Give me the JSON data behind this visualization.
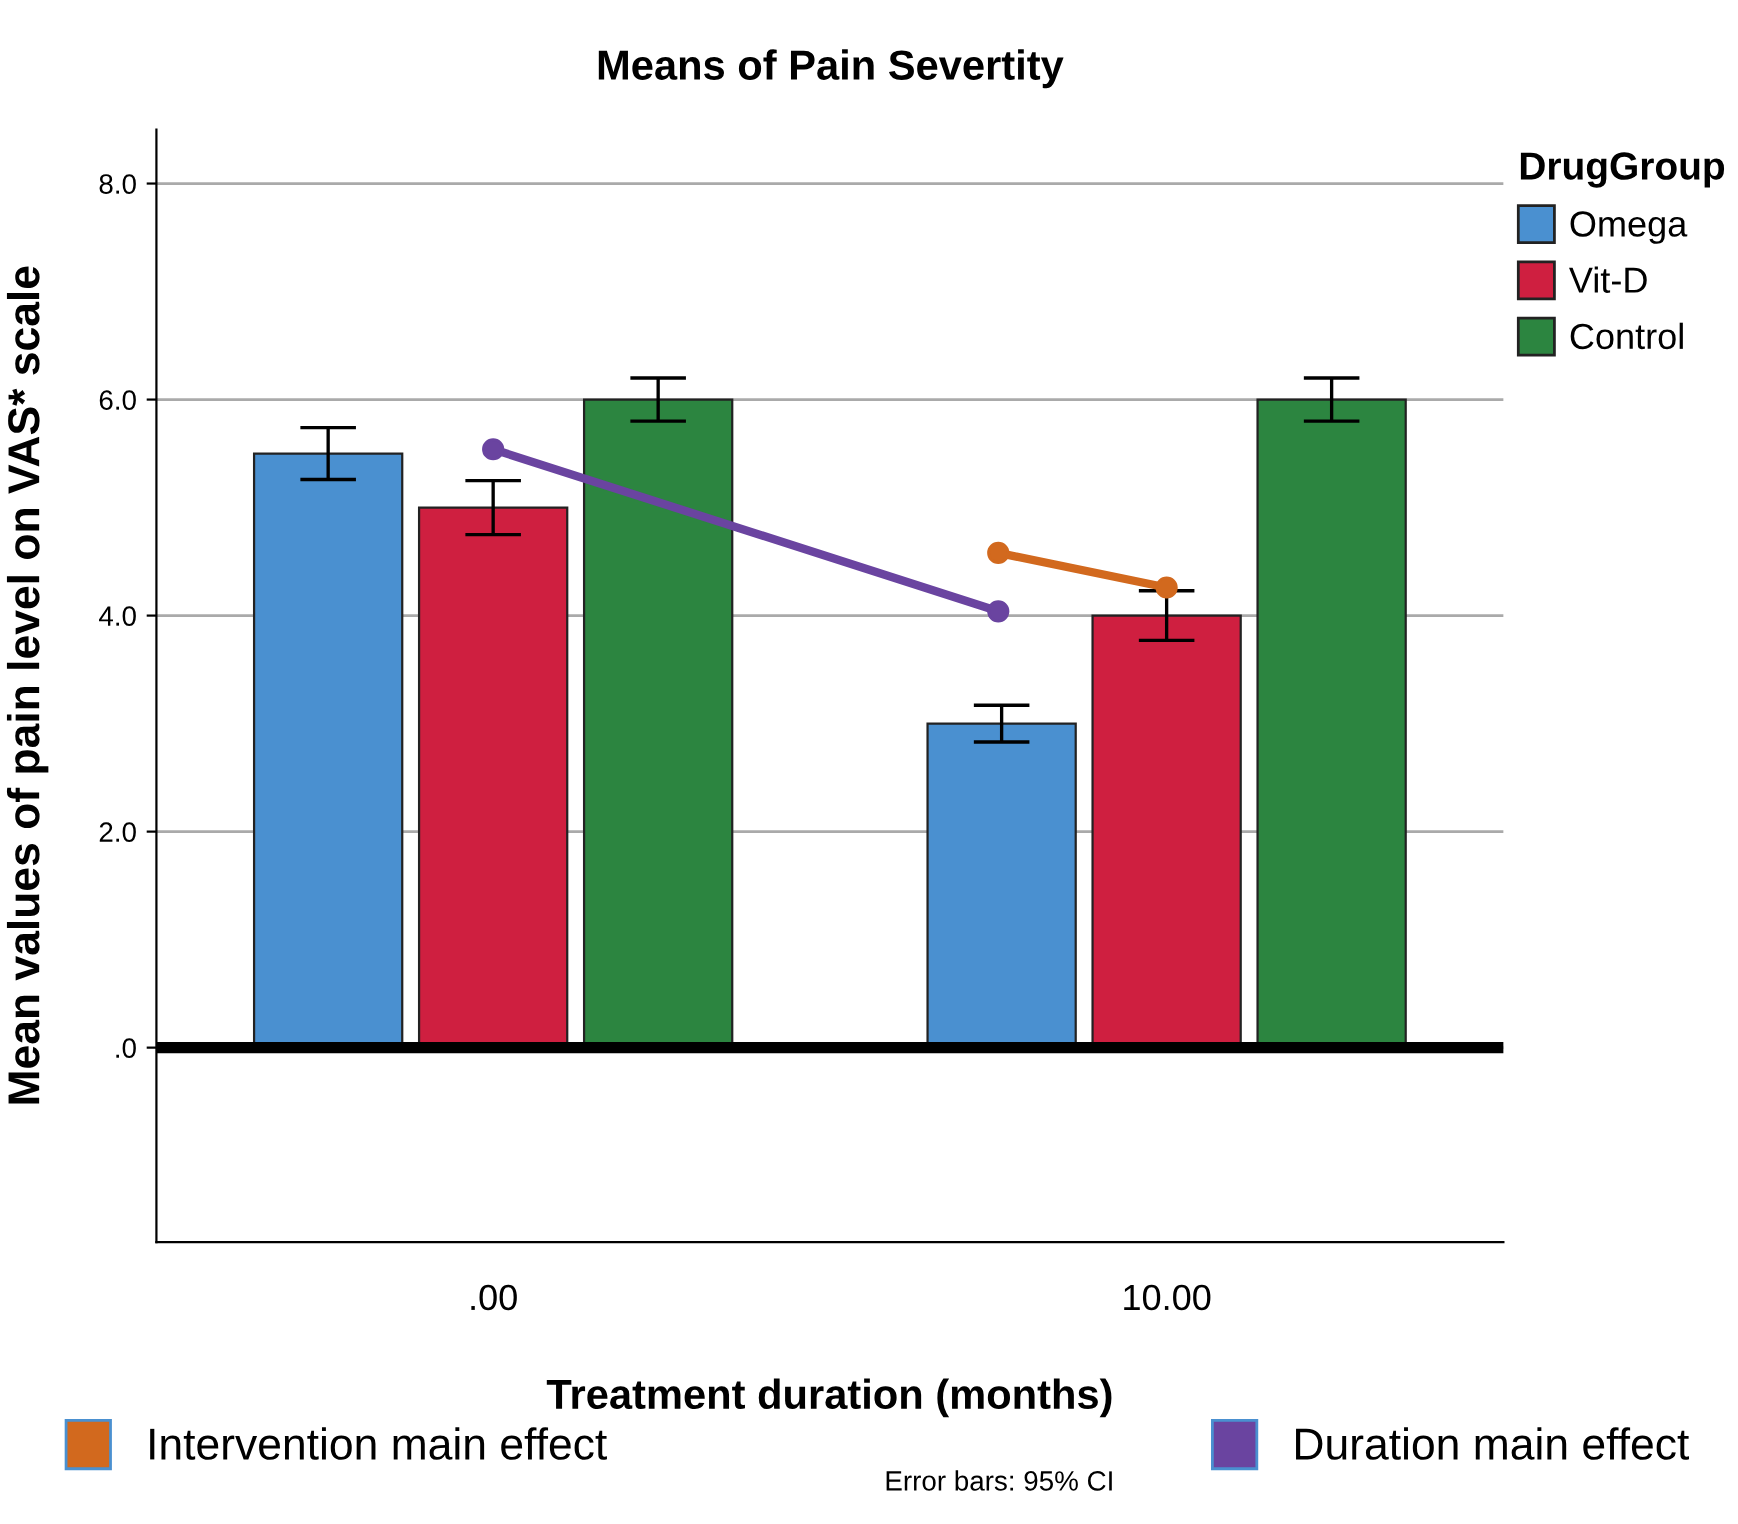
{
  "chart_data": {
    "type": "bar",
    "title": "Means of Pain Severtity",
    "xlabel": "Treatment duration (months)",
    "ylabel": "Mean values of pain level on VAS* scale",
    "legend_title": "DrugGroup",
    "x": [
      0,
      10
    ],
    "xlim": [
      -5,
      15
    ],
    "xticks": [
      {
        "value": 0,
        "label": ".00"
      },
      {
        "value": 10,
        "label": "10.00"
      }
    ],
    "series": [
      {
        "name": "Omega",
        "color": "#4a90d0",
        "values": [
          5.5,
          3.0
        ],
        "errors": [
          0.24,
          0.17
        ]
      },
      {
        "name": "Vit-D",
        "color": "#cf1f40",
        "values": [
          5.0,
          4.0
        ],
        "errors": [
          0.25,
          0.23
        ]
      },
      {
        "name": "Control",
        "color": "#2c8540",
        "values": [
          6.0,
          6.0
        ],
        "errors": [
          0.2,
          0.2
        ]
      },
      {
        "name": "Intervention main effect",
        "type": "line",
        "color": "#d2691e",
        "x": [
          7.5,
          10
        ],
        "values": [
          4.58,
          4.26
        ],
        "marker": "circle"
      },
      {
        "name": "Duration main effect",
        "type": "line",
        "color": "#6a44a0",
        "x": [
          0,
          7.5
        ],
        "values": [
          5.54,
          4.04
        ],
        "marker": "circle"
      }
    ],
    "ylim": [
      -1.8,
      8.5
    ],
    "yticks": [
      {
        "value": 0,
        "label": ".0"
      },
      {
        "value": 2,
        "label": "2.0"
      },
      {
        "value": 4,
        "label": "4.0"
      },
      {
        "value": 6,
        "label": "6.0"
      },
      {
        "value": 8,
        "label": "8.0"
      }
    ],
    "grid": "y",
    "legend": "right",
    "ref_lines": [
      {
        "axis": "y",
        "value": 0,
        "color": "#000000"
      }
    ],
    "annotations": [
      "Error bars: 95% CI"
    ]
  }
}
